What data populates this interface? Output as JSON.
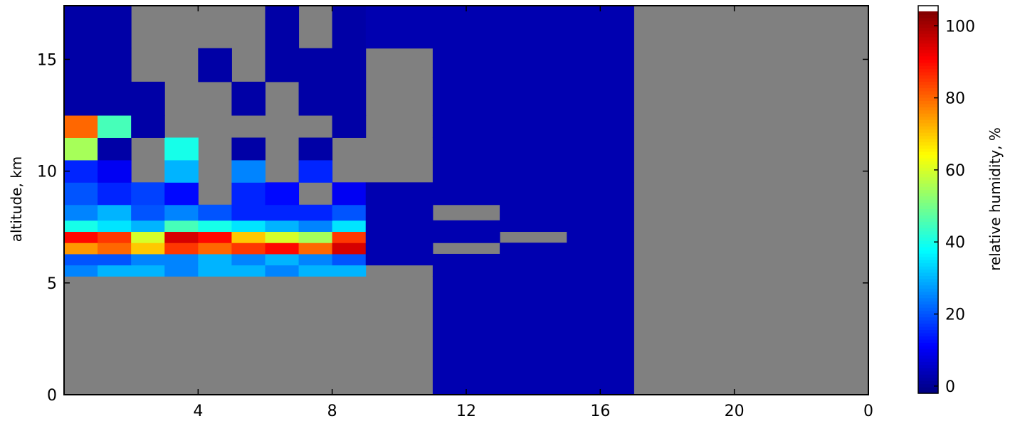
{
  "chart_data": {
    "type": "heatmap",
    "ylabel": "altitude, km",
    "colorbar_label": "relative humidity, %",
    "colormap": "jet",
    "nan_color": "#808080",
    "xlim": [
      0,
      24
    ],
    "xticks": [
      4,
      8,
      12,
      16,
      20,
      {
        "value": 24,
        "label": "0"
      }
    ],
    "ylim": [
      0,
      17.4
    ],
    "yticks": [
      0,
      5,
      10,
      15
    ],
    "clim": [
      -2,
      104
    ],
    "cticks": [
      0,
      20,
      40,
      60,
      80,
      100
    ],
    "x_bins": [
      0,
      1,
      2,
      3,
      4,
      5,
      6,
      7,
      8,
      9,
      11,
      13,
      15,
      17,
      24
    ],
    "y_bins": [
      0,
      5.3,
      5.8,
      6.3,
      6.8,
      7.3,
      7.8,
      8.5,
      9.5,
      10.5,
      11.5,
      12.5,
      14,
      15.5,
      17.4
    ],
    "z": [
      [
        null,
        null,
        null,
        null,
        null,
        null,
        null,
        null,
        null,
        null,
        3,
        3,
        3,
        null
      ],
      [
        25,
        30,
        30,
        25,
        30,
        30,
        25,
        30,
        30,
        null,
        3,
        3,
        3,
        null
      ],
      [
        20,
        20,
        25,
        25,
        30,
        25,
        30,
        25,
        20,
        3,
        3,
        3,
        3,
        null
      ],
      [
        75,
        80,
        70,
        85,
        80,
        85,
        90,
        80,
        95,
        3,
        null,
        3,
        3,
        null
      ],
      [
        90,
        85,
        60,
        95,
        90,
        70,
        60,
        55,
        85,
        3,
        3,
        null,
        3,
        null
      ],
      [
        40,
        35,
        30,
        45,
        40,
        35,
        30,
        25,
        35,
        3,
        3,
        3,
        3,
        null
      ],
      [
        25,
        30,
        20,
        25,
        20,
        15,
        15,
        15,
        20,
        3,
        null,
        3,
        3,
        null
      ],
      [
        20,
        15,
        18,
        12,
        null,
        15,
        12,
        null,
        10,
        3,
        3,
        3,
        3,
        null
      ],
      [
        15,
        10,
        null,
        30,
        null,
        25,
        null,
        15,
        null,
        null,
        3,
        3,
        3,
        null
      ],
      [
        55,
        2,
        null,
        40,
        null,
        2,
        null,
        2,
        null,
        null,
        3,
        3,
        3,
        null
      ],
      [
        80,
        45,
        2,
        null,
        null,
        null,
        null,
        null,
        2,
        null,
        3,
        3,
        3,
        null
      ],
      [
        2,
        2,
        2,
        null,
        null,
        2,
        null,
        2,
        2,
        null,
        3,
        3,
        3,
        null
      ],
      [
        2,
        2,
        null,
        null,
        2,
        null,
        2,
        2,
        2,
        null,
        3,
        3,
        3,
        null
      ],
      [
        2,
        2,
        null,
        null,
        null,
        null,
        2,
        null,
        2,
        3,
        3,
        3,
        3,
        null
      ]
    ]
  }
}
